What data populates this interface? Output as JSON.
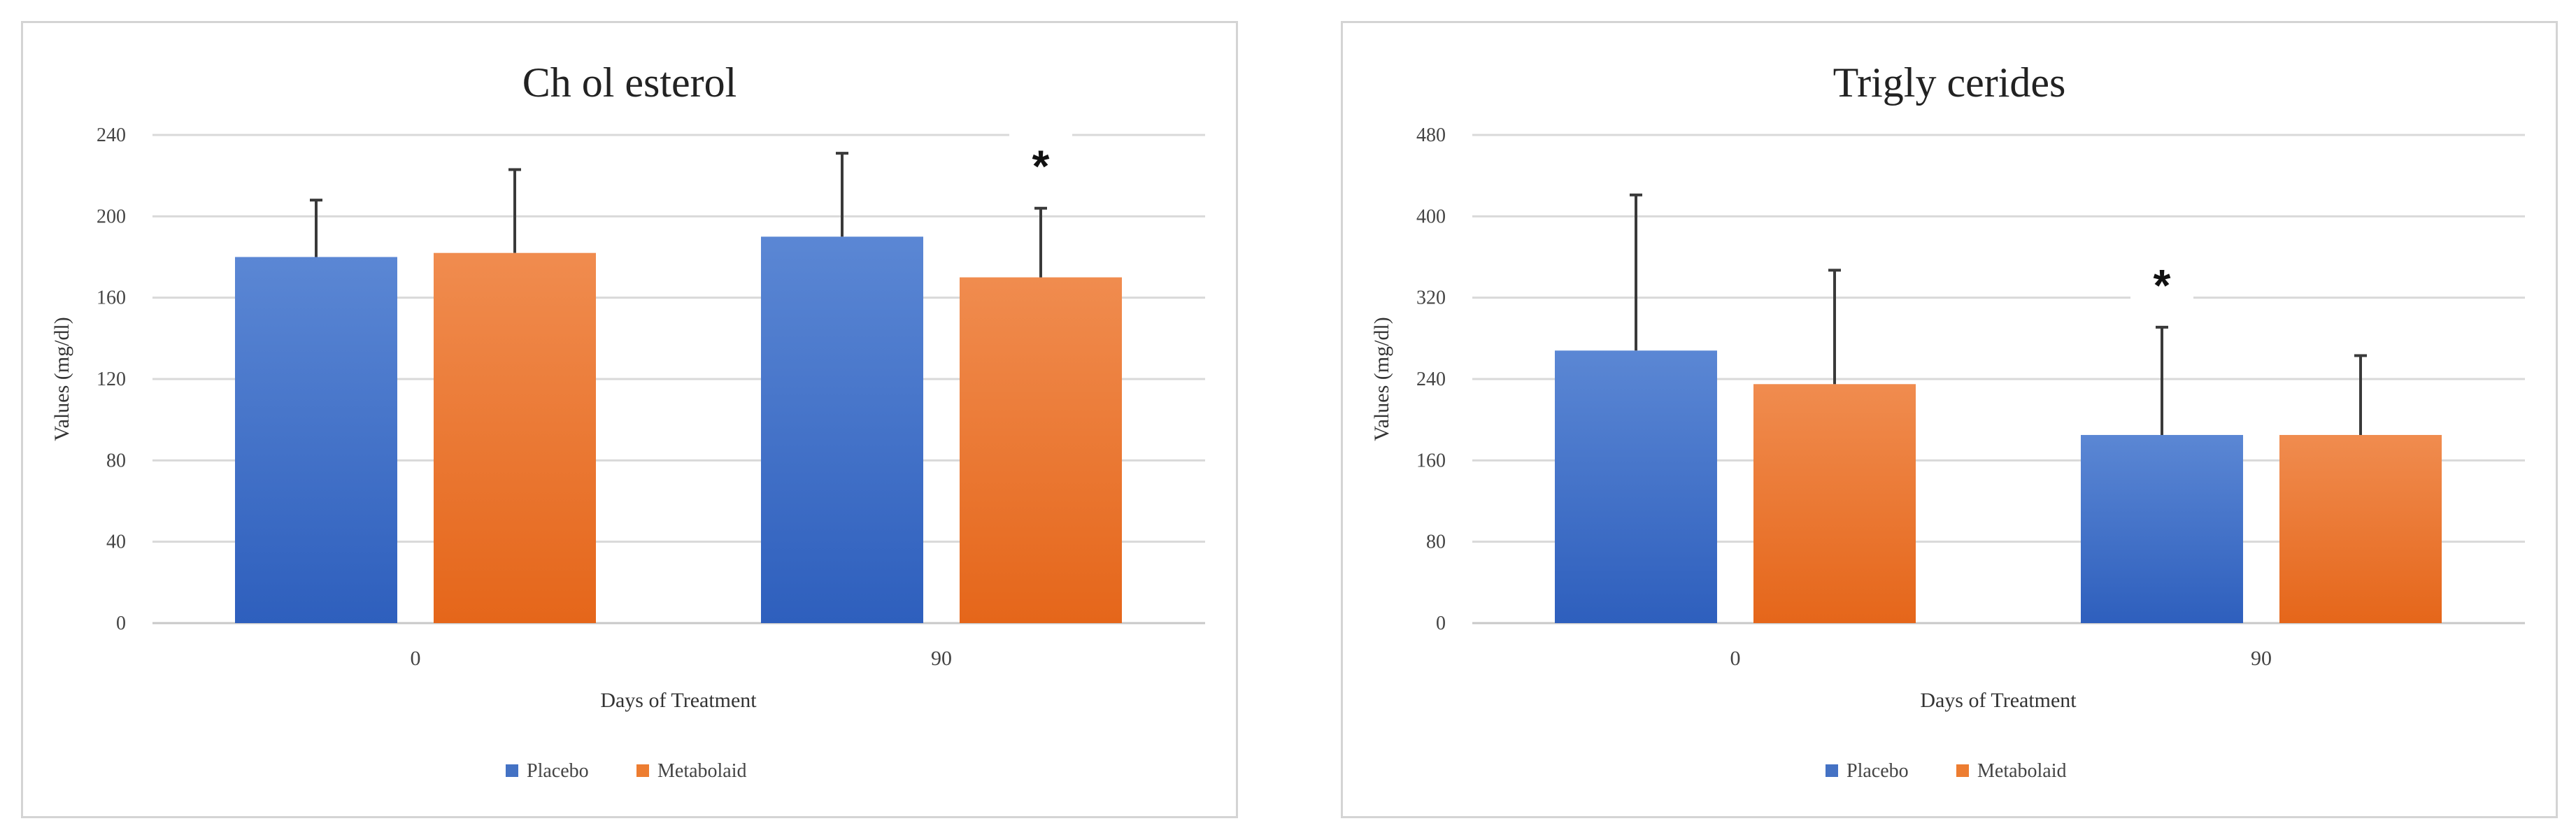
{
  "chart_data": [
    {
      "type": "bar",
      "title": "Ch ol esterol",
      "xlabel": "Days of Treatment",
      "ylabel": "Values (mg/dl)",
      "categories": [
        "0",
        "90"
      ],
      "ylim": [
        0,
        240
      ],
      "yticks": [
        "0",
        "40",
        "80",
        "120",
        "160",
        "200",
        "240"
      ],
      "grid": true,
      "legend_position": "bottom",
      "series": [
        {
          "name": "Placebo",
          "color": "#4472c4",
          "values": [
            180,
            190
          ],
          "error": [
            28,
            41
          ]
        },
        {
          "name": "Metabolaid",
          "color": "#ed7d31",
          "values": [
            182,
            170
          ],
          "error": [
            41,
            34
          ]
        }
      ],
      "annotations": [
        {
          "text": "*",
          "category": "90",
          "series": "Metabolaid"
        }
      ]
    },
    {
      "type": "bar",
      "title": "Trigly cerides",
      "xlabel": "Days of Treatment",
      "ylabel": "Values (mg/dl)",
      "categories": [
        "0",
        "90"
      ],
      "ylim": [
        0,
        480
      ],
      "yticks": [
        "0",
        "80",
        "160",
        "240",
        "320",
        "400",
        "480"
      ],
      "grid": true,
      "legend_position": "bottom",
      "series": [
        {
          "name": "Placebo",
          "color": "#4472c4",
          "values": [
            268,
            185
          ],
          "error": [
            153,
            106
          ]
        },
        {
          "name": "Metabolaid",
          "color": "#ed7d31",
          "values": [
            235,
            185
          ],
          "error": [
            112,
            78
          ]
        }
      ],
      "annotations": [
        {
          "text": "*",
          "category": "90",
          "series": "Placebo"
        }
      ]
    }
  ]
}
